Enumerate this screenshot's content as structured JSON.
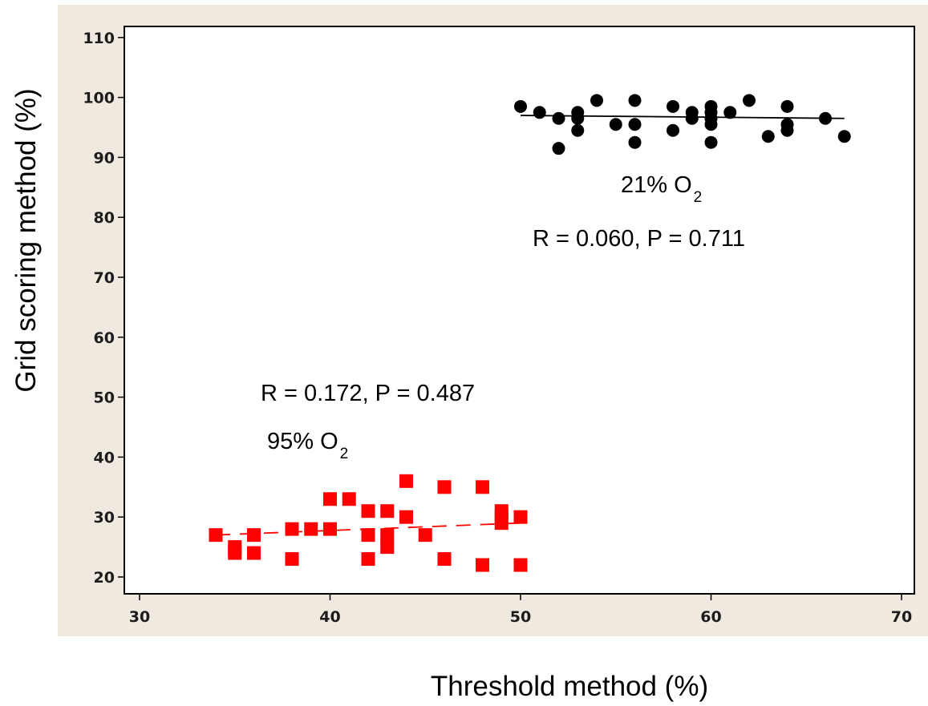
{
  "chart_data": {
    "type": "scatter",
    "title": "",
    "xlabel": "Threshold method (%)",
    "ylabel": "Grid scoring method (%)",
    "xlim": [
      30,
      70
    ],
    "ylim": [
      20,
      110
    ],
    "x_ticks": [
      30,
      40,
      50,
      60,
      70
    ],
    "y_ticks": [
      20,
      30,
      40,
      50,
      60,
      70,
      80,
      90,
      100,
      110
    ],
    "grid": false,
    "legend": "none",
    "series": [
      {
        "marker": "circle",
        "color": "#000000",
        "trend": {
          "style": "solid",
          "x": [
            50,
            67
          ],
          "y": [
            97.0,
            96.5
          ]
        },
        "points": [
          [
            50,
            98.5
          ],
          [
            51,
            97.5
          ],
          [
            52,
            96.5
          ],
          [
            52,
            91.5
          ],
          [
            53,
            97.5
          ],
          [
            53,
            96.5
          ],
          [
            53,
            94.5
          ],
          [
            54,
            99.5
          ],
          [
            55,
            95.5
          ],
          [
            56,
            99.5
          ],
          [
            56,
            95.5
          ],
          [
            56,
            92.5
          ],
          [
            58,
            98.5
          ],
          [
            58,
            94.5
          ],
          [
            59,
            97.5
          ],
          [
            59,
            96.5
          ],
          [
            60,
            98.5
          ],
          [
            60,
            97.5
          ],
          [
            60,
            96.5
          ],
          [
            60,
            95.5
          ],
          [
            60,
            92.5
          ],
          [
            61,
            97.5
          ],
          [
            62,
            99.5
          ],
          [
            63,
            93.5
          ],
          [
            64,
            98.5
          ],
          [
            64,
            95.5
          ],
          [
            64,
            94.5
          ],
          [
            66,
            96.5
          ],
          [
            67,
            93.5
          ]
        ]
      },
      {
        "marker": "square",
        "color": "#ff0000",
        "trend": {
          "style": "dashed",
          "x": [
            34,
            50
          ],
          "y": [
            27.0,
            29.0
          ]
        },
        "points": [
          [
            34,
            27
          ],
          [
            35,
            25
          ],
          [
            35,
            24
          ],
          [
            36,
            27
          ],
          [
            36,
            24
          ],
          [
            38,
            28
          ],
          [
            38,
            23
          ],
          [
            39,
            28
          ],
          [
            40,
            33
          ],
          [
            40,
            28
          ],
          [
            41,
            33
          ],
          [
            42,
            31
          ],
          [
            42,
            27
          ],
          [
            42,
            23
          ],
          [
            43,
            31
          ],
          [
            43,
            27
          ],
          [
            43,
            25
          ],
          [
            44,
            36
          ],
          [
            44,
            30
          ],
          [
            45,
            27
          ],
          [
            46,
            35
          ],
          [
            46,
            23
          ],
          [
            48,
            35
          ],
          [
            48,
            22
          ],
          [
            49,
            31
          ],
          [
            49,
            30
          ],
          [
            49,
            29
          ],
          [
            50,
            30
          ],
          [
            50,
            22
          ]
        ]
      }
    ],
    "annotations": [
      {
        "id": "upper-o2",
        "text": "21% O",
        "sub": "2"
      },
      {
        "id": "upper-stats",
        "text": "R = 0.060, P = 0.711"
      },
      {
        "id": "lower-stats",
        "text": "R = 0.172, P = 0.487"
      },
      {
        "id": "lower-o2",
        "text": "95% O",
        "sub": "2"
      }
    ],
    "colors": {
      "panel_background": "#efe9df",
      "plot_background": "#ffffff",
      "frame": "#000000"
    }
  }
}
